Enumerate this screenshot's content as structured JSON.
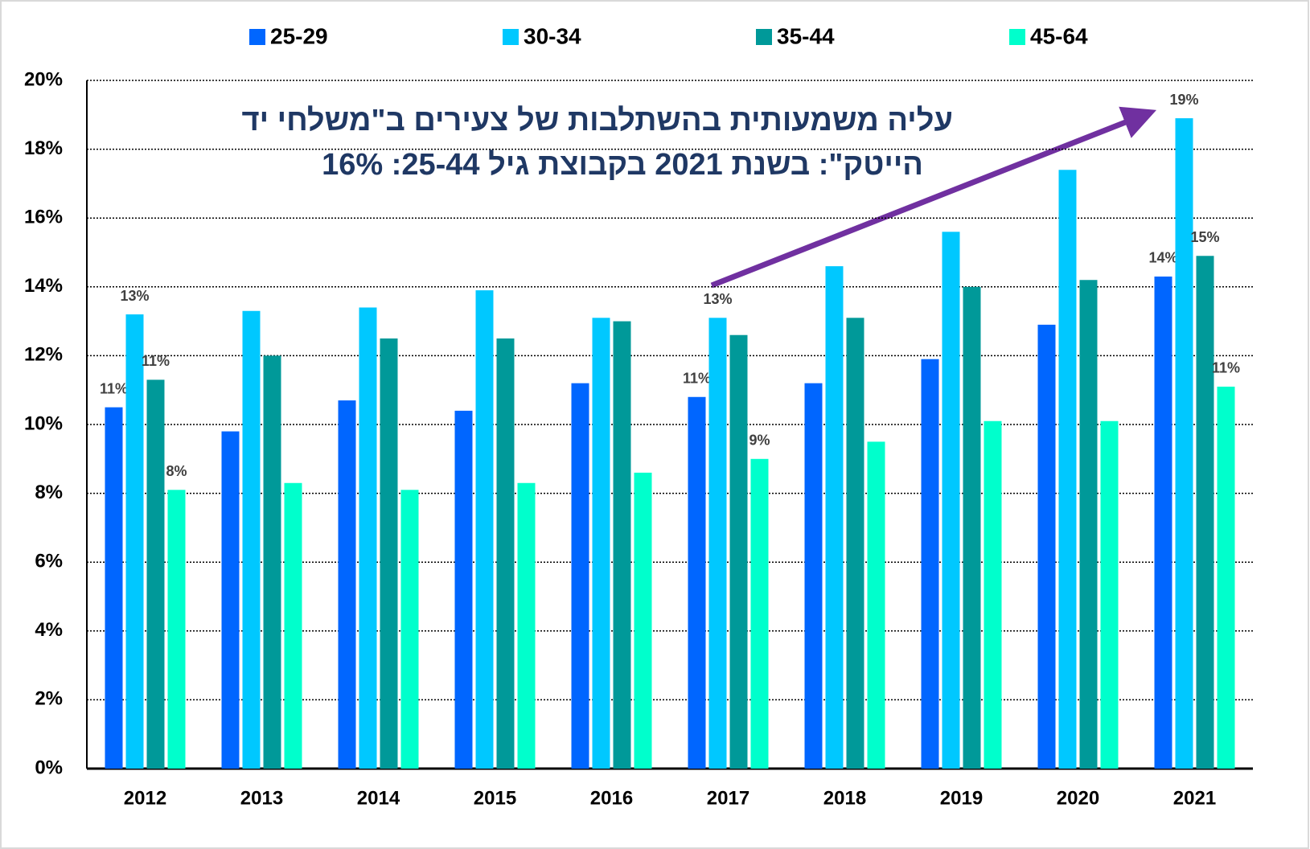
{
  "chart_data": {
    "type": "bar",
    "annotations": [
      "עליה משמעותית בהשתלבות של צעירים ב\"משלחי יד",
      "הייטק\": בשנת 2021 בקבוצת גיל 25-44:   16%"
    ],
    "categories": [
      "2012",
      "2013",
      "2014",
      "2015",
      "2016",
      "2017",
      "2018",
      "2019",
      "2020",
      "2021"
    ],
    "series": [
      {
        "name": "25-29",
        "color": "#0066ff",
        "values": [
          10.5,
          9.8,
          10.7,
          10.4,
          11.2,
          10.8,
          11.2,
          11.9,
          12.9,
          14.3
        ],
        "value_labels": [
          "11%",
          null,
          null,
          null,
          null,
          "11%",
          null,
          null,
          null,
          "14%"
        ]
      },
      {
        "name": "30-34",
        "color": "#00c8ff",
        "values": [
          13.2,
          13.3,
          13.4,
          13.9,
          13.1,
          13.1,
          14.6,
          15.6,
          17.4,
          18.9
        ],
        "value_labels": [
          "13%",
          null,
          null,
          null,
          null,
          "13%",
          null,
          null,
          null,
          "19%"
        ]
      },
      {
        "name": "35-44",
        "color": "#009999",
        "values": [
          11.3,
          12.0,
          12.5,
          12.5,
          13.0,
          12.6,
          13.1,
          14.0,
          14.2,
          14.9
        ],
        "value_labels": [
          "11%",
          null,
          null,
          null,
          null,
          null,
          null,
          null,
          null,
          "15%"
        ]
      },
      {
        "name": "45-64",
        "color": "#00ffcc",
        "values": [
          8.1,
          8.3,
          8.1,
          8.3,
          8.6,
          9.0,
          9.5,
          10.1,
          10.1,
          11.1
        ],
        "value_labels": [
          "8%",
          null,
          null,
          null,
          null,
          "9%",
          null,
          null,
          null,
          "11%"
        ]
      }
    ],
    "ylim": [
      0,
      20
    ],
    "yticks": [
      {
        "value": 0,
        "label": "0%"
      },
      {
        "value": 2,
        "label": "2%"
      },
      {
        "value": 4,
        "label": "4%"
      },
      {
        "value": 6,
        "label": "6%"
      },
      {
        "value": 8,
        "label": "8%"
      },
      {
        "value": 10,
        "label": "10%"
      },
      {
        "value": 12,
        "label": "12%"
      },
      {
        "value": 14,
        "label": "14%"
      },
      {
        "value": 16,
        "label": "16%"
      },
      {
        "value": 18,
        "label": "18%"
      },
      {
        "value": 20,
        "label": "20%"
      }
    ],
    "grid": true,
    "legend": "top"
  }
}
